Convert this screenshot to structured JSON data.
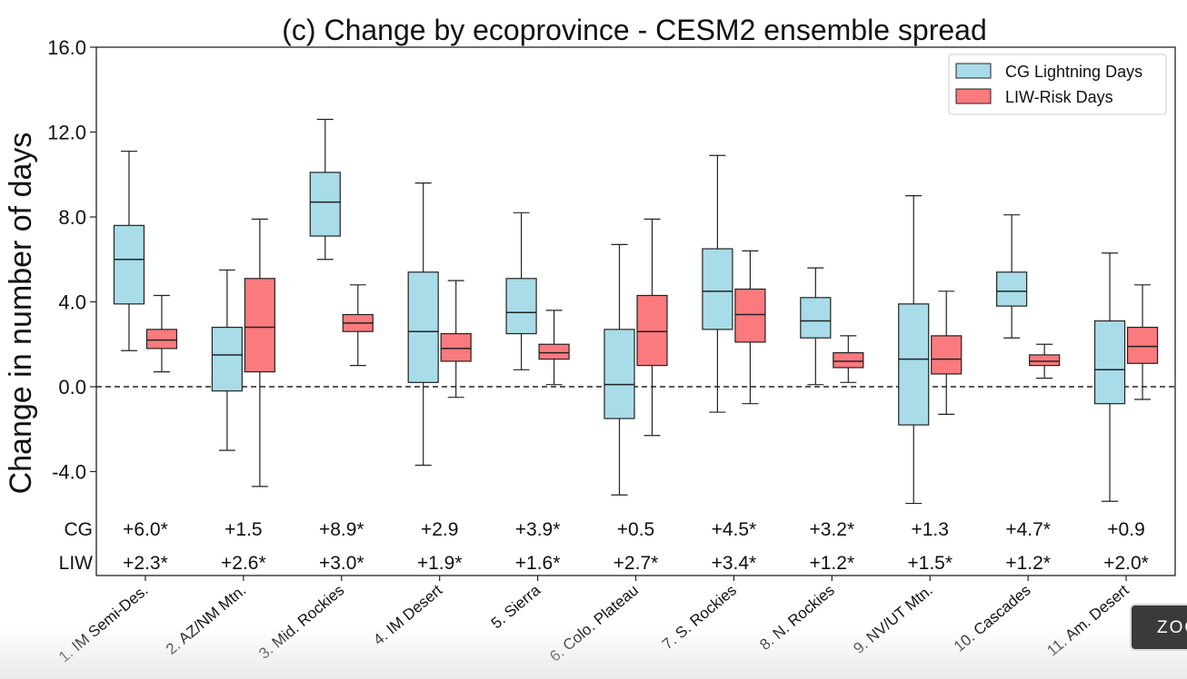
{
  "chart_data": {
    "type": "box",
    "title": "(c) Change by ecoprovince - CESM2 ensemble spread",
    "ylabel": "Change in number of days",
    "xlabel": "",
    "ylim": [
      -5.6,
      16.0
    ],
    "yticks": [
      "16.0",
      "12.0",
      "8.0",
      "4.0",
      "0.0",
      "-4.0"
    ],
    "ytick_values": [
      16,
      12,
      8,
      4,
      0,
      -4
    ],
    "reference_line": 0,
    "legend_position": "top-right",
    "categories": [
      "1. IM Semi-Des.",
      "2. AZ/NM Mtn.",
      "3. Mid. Rockies",
      "4. IM Desert",
      "5. Sierra",
      "6. Colo. Plateau",
      "7. S. Rockies",
      "8. N. Rockies",
      "9. NV/UT Mtn.",
      "10. Cascades",
      "11. Am. Desert"
    ],
    "series": [
      {
        "name": "CG Lightning Days",
        "row_label": "CG",
        "color": "#a8dce8",
        "boxes": [
          {
            "min": 1.7,
            "q1": 3.9,
            "median": 6.0,
            "q3": 7.6,
            "max": 11.1
          },
          {
            "min": -3.0,
            "q1": -0.2,
            "median": 1.5,
            "q3": 2.8,
            "max": 5.5
          },
          {
            "min": 6.0,
            "q1": 7.1,
            "median": 8.7,
            "q3": 10.1,
            "max": 12.6
          },
          {
            "min": -3.7,
            "q1": 0.2,
            "median": 2.6,
            "q3": 5.4,
            "max": 9.6
          },
          {
            "min": 0.8,
            "q1": 2.5,
            "median": 3.5,
            "q3": 5.1,
            "max": 8.2
          },
          {
            "min": -5.1,
            "q1": -1.5,
            "median": 0.1,
            "q3": 2.7,
            "max": 6.7
          },
          {
            "min": -1.2,
            "q1": 2.7,
            "median": 4.5,
            "q3": 6.5,
            "max": 10.9
          },
          {
            "min": 0.1,
            "q1": 2.3,
            "median": 3.1,
            "q3": 4.2,
            "max": 5.6
          },
          {
            "min": -5.5,
            "q1": -1.8,
            "median": 1.3,
            "q3": 3.9,
            "max": 9.0
          },
          {
            "min": 2.3,
            "q1": 3.8,
            "median": 4.5,
            "q3": 5.4,
            "max": 8.1
          },
          {
            "min": -5.4,
            "q1": -0.8,
            "median": 0.8,
            "q3": 3.1,
            "max": 6.3
          }
        ],
        "annotations": [
          "+6.0*",
          "+1.5",
          "+8.9*",
          "+2.9",
          "+3.9*",
          "+0.5",
          "+4.5*",
          "+3.2*",
          "+1.3",
          "+4.7*",
          "+0.9"
        ]
      },
      {
        "name": "LIW-Risk Days",
        "row_label": "LIW",
        "color": "#fa7a7e",
        "boxes": [
          {
            "min": 0.7,
            "q1": 1.8,
            "median": 2.2,
            "q3": 2.7,
            "max": 4.3
          },
          {
            "min": -4.7,
            "q1": 0.7,
            "median": 2.8,
            "q3": 5.1,
            "max": 7.9
          },
          {
            "min": 1.0,
            "q1": 2.6,
            "median": 3.0,
            "q3": 3.4,
            "max": 4.8
          },
          {
            "min": -0.5,
            "q1": 1.2,
            "median": 1.8,
            "q3": 2.5,
            "max": 5.0
          },
          {
            "min": 0.1,
            "q1": 1.3,
            "median": 1.6,
            "q3": 2.0,
            "max": 3.6
          },
          {
            "min": -2.3,
            "q1": 1.0,
            "median": 2.6,
            "q3": 4.3,
            "max": 7.9
          },
          {
            "min": -0.8,
            "q1": 2.1,
            "median": 3.4,
            "q3": 4.6,
            "max": 6.4
          },
          {
            "min": 0.2,
            "q1": 0.9,
            "median": 1.2,
            "q3": 1.6,
            "max": 2.4
          },
          {
            "min": -1.3,
            "q1": 0.6,
            "median": 1.3,
            "q3": 2.4,
            "max": 4.5
          },
          {
            "min": 0.4,
            "q1": 1.0,
            "median": 1.2,
            "q3": 1.5,
            "max": 2.0
          },
          {
            "min": -0.6,
            "q1": 1.1,
            "median": 1.9,
            "q3": 2.8,
            "max": 4.8
          }
        ],
        "annotations": [
          "+2.3*",
          "+2.6*",
          "+3.0*",
          "+1.9*",
          "+1.6*",
          "+2.7*",
          "+3.4*",
          "+1.2*",
          "+1.5*",
          "+1.2*",
          "+2.0*"
        ]
      }
    ]
  },
  "overlay": {
    "zoom_label": "ZOOM"
  }
}
